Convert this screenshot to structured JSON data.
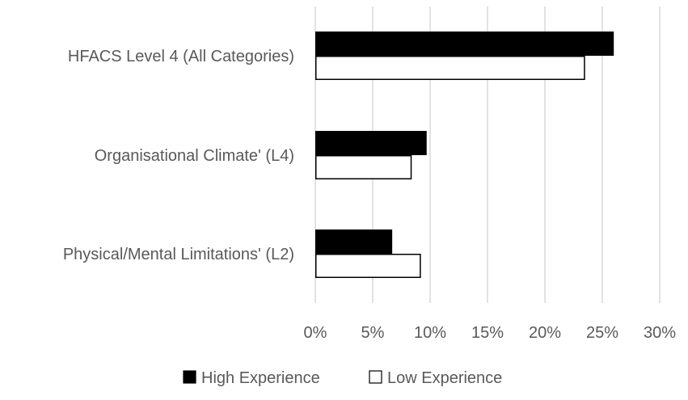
{
  "chart_data": {
    "type": "bar",
    "orientation": "horizontal",
    "title": "",
    "xlabel": "",
    "ylabel": "",
    "categories": [
      "HFACS Level 4 (All Categories)",
      "Organisational Climate' (L4)",
      "Physical/Mental Limitations' (L2)"
    ],
    "series": [
      {
        "name": "High Experience",
        "values": [
          26,
          9.7,
          6.7
        ],
        "fill": "#000000",
        "stroke": "#000000"
      },
      {
        "name": "Low Experience",
        "values": [
          23.5,
          8.4,
          9.2
        ],
        "fill": "#ffffff",
        "stroke": "#000000"
      }
    ],
    "xlim": [
      0,
      30
    ],
    "x_ticks": [
      0,
      5,
      10,
      15,
      20,
      25,
      30
    ],
    "tick_labels": [
      "0%",
      "5%",
      "10%",
      "15%",
      "20%",
      "25%",
      "30%"
    ],
    "grid": "vertical",
    "legend_position": "bottom-center",
    "colors": {
      "grid": "#d9d9d9",
      "text": "#595959"
    }
  }
}
